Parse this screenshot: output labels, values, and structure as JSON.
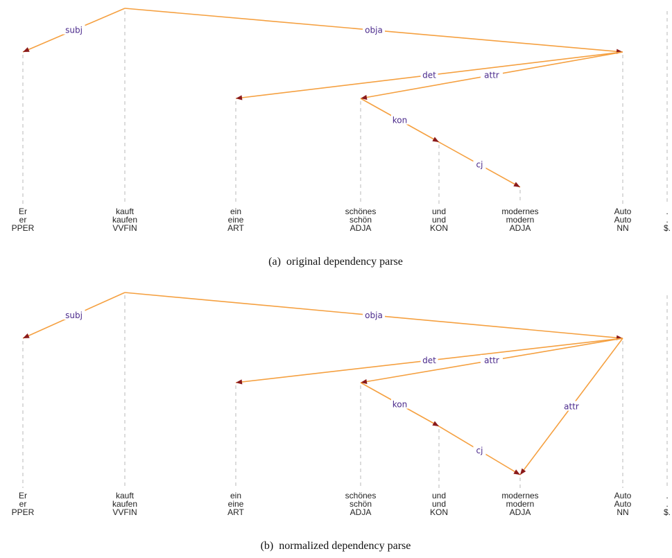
{
  "figure": {
    "tokens": [
      {
        "form": "Er",
        "lemma": "er",
        "pos": "PPER"
      },
      {
        "form": "kauft",
        "lemma": "kaufen",
        "pos": "VVFIN"
      },
      {
        "form": "ein",
        "lemma": "eine",
        "pos": "ART"
      },
      {
        "form": "schönes",
        "lemma": "schön",
        "pos": "ADJA"
      },
      {
        "form": "und",
        "lemma": "und",
        "pos": "KON"
      },
      {
        "form": "modernes",
        "lemma": "modern",
        "pos": "ADJA"
      },
      {
        "form": "Auto",
        "lemma": "Auto",
        "pos": "NN"
      },
      {
        "form": ".",
        "lemma": ".",
        "pos": "$."
      }
    ],
    "panels": [
      {
        "caption": "(a)  original dependency parse",
        "edges": [
          {
            "label": "subj",
            "head": 1,
            "dep": 0
          },
          {
            "label": "obja",
            "head": 1,
            "dep": 6
          },
          {
            "label": "det",
            "head": 6,
            "dep": 2
          },
          {
            "label": "attr",
            "head": 6,
            "dep": 3
          },
          {
            "label": "kon",
            "head": 3,
            "dep": 4
          },
          {
            "label": "cj",
            "head": 4,
            "dep": 5
          }
        ]
      },
      {
        "caption": "(b)  normalized dependency parse",
        "edges": [
          {
            "label": "subj",
            "head": 1,
            "dep": 0
          },
          {
            "label": "obja",
            "head": 1,
            "dep": 6
          },
          {
            "label": "det",
            "head": 6,
            "dep": 2
          },
          {
            "label": "attr",
            "head": 6,
            "dep": 3
          },
          {
            "label": "kon",
            "head": 3,
            "dep": 4
          },
          {
            "label": "cj",
            "head": 4,
            "dep": 5
          },
          {
            "label": "attr",
            "head": 6,
            "dep": 5
          }
        ]
      }
    ]
  },
  "colors": {
    "edge": "#f5a040",
    "arrowhead": "#8b1a1a",
    "label": "#4b2a8c",
    "guide": "#c8c8c8"
  }
}
